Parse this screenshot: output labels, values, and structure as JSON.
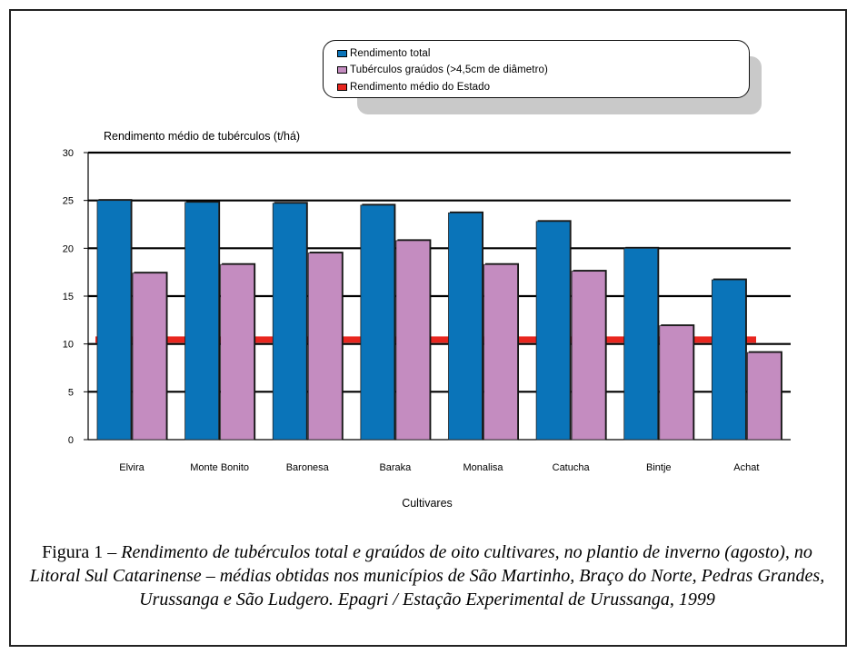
{
  "legend": {
    "items": [
      {
        "label": "Rendimento total",
        "color": "#0a74b9"
      },
      {
        "label": "Tubérculos graúdos (>4,5cm de diâmetro)",
        "color": "#c48cc0"
      },
      {
        "label": "Rendimento médio do Estado",
        "color": "#e8261f"
      }
    ]
  },
  "caption": {
    "lead": "Figura 1 – ",
    "body": "Rendimento de tubérculos total e graúdos de oito cultivares, no plantio de inverno (agosto), no Litoral Sul Catarinense – médias obtidas nos municípios de São Martinho, Braço do Norte, Pedras Grandes, Urussanga e São Ludgero. Epagri / Estação Experimental de Urussanga, 1999"
  },
  "chart_data": {
    "type": "bar",
    "ylabel": "Rendimento médio de tubérculos (t/há)",
    "xlabel": "Cultivares",
    "ylim": [
      0,
      30
    ],
    "yticks": [
      0,
      5,
      10,
      15,
      20,
      25,
      30
    ],
    "grid": true,
    "legend_position": "top-right",
    "categories": [
      "Elvira",
      "Monte Bonito",
      "Baronesa",
      "Baraka",
      "Monalisa",
      "Catucha",
      "Bintje",
      "Achat"
    ],
    "series": [
      {
        "name": "Rendimento total",
        "color": "#0a74b9",
        "values": [
          25.0,
          24.8,
          24.7,
          24.5,
          23.7,
          22.8,
          20.0,
          16.7
        ]
      },
      {
        "name": "Tubérculos graúdos (>4,5cm de diâmetro)",
        "color": "#c48cc0",
        "values": [
          17.4,
          18.3,
          19.5,
          20.8,
          18.3,
          17.6,
          11.9,
          9.1
        ]
      }
    ],
    "reference_line": {
      "name": "Rendimento médio do Estado",
      "value": 10.5,
      "color": "#e8261f"
    }
  }
}
